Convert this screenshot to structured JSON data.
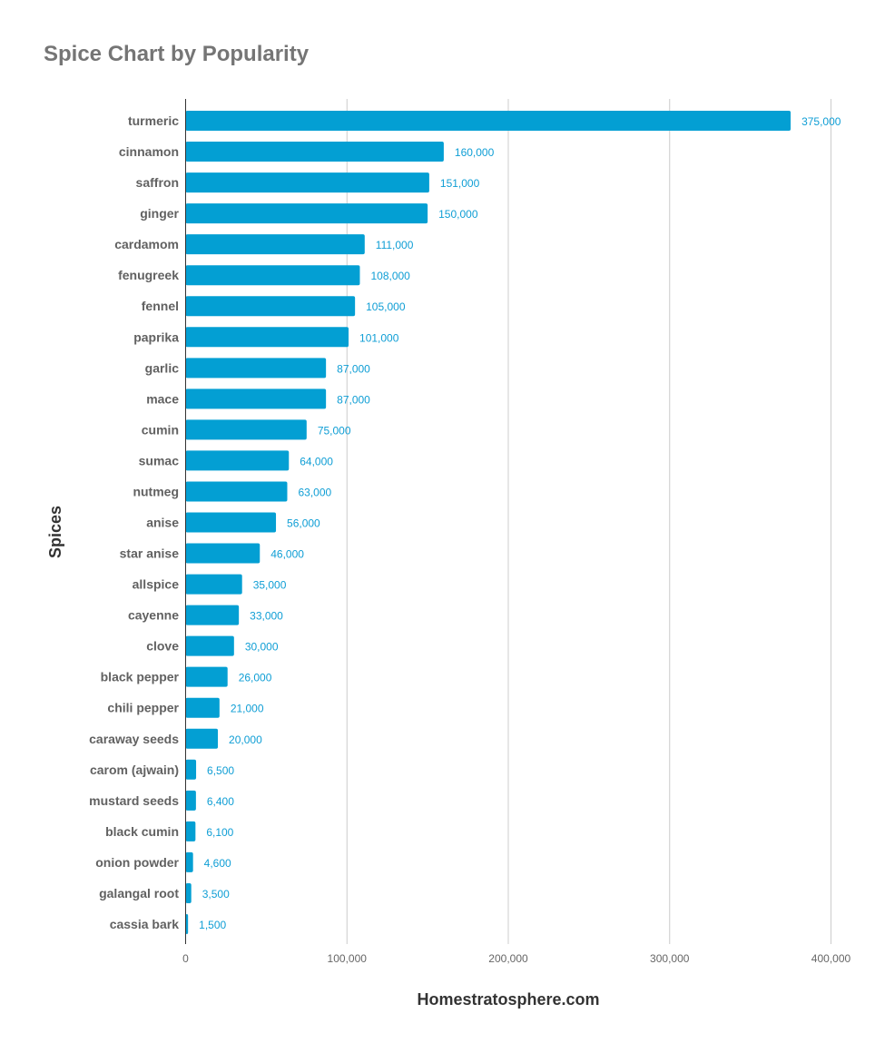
{
  "title": "Spice Chart by Popularity",
  "chart_data": {
    "type": "bar",
    "orientation": "horizontal",
    "title": "Spice Chart by Popularity",
    "xlabel": "Homestratosphere.com",
    "ylabel": "Spices",
    "xlim": [
      0,
      400000
    ],
    "xticks": [
      0,
      100000,
      200000,
      300000,
      400000
    ],
    "xtick_labels": [
      "0",
      "100,000",
      "200,000",
      "300,000",
      "400,000"
    ],
    "grid": "vertical",
    "bar_color": "#039fd3",
    "label_color": "#0f9ed5",
    "categories": [
      "turmeric",
      "cinnamon",
      "saffron",
      "ginger",
      "cardamom",
      "fenugreek",
      "fennel",
      "paprika",
      "garlic",
      "mace",
      "cumin",
      "sumac",
      "nutmeg",
      "anise",
      "star anise",
      "allspice",
      "cayenne",
      "clove",
      "black pepper",
      "chili pepper",
      "caraway seeds",
      "carom (ajwain)",
      "mustard seeds",
      "black cumin",
      "onion powder",
      "galangal root",
      "cassia bark"
    ],
    "values": [
      375000,
      160000,
      151000,
      150000,
      111000,
      108000,
      105000,
      101000,
      87000,
      87000,
      75000,
      64000,
      63000,
      56000,
      46000,
      35000,
      33000,
      30000,
      26000,
      21000,
      20000,
      6500,
      6400,
      6100,
      4600,
      3500,
      1500
    ],
    "value_labels": [
      "375,000",
      "160,000",
      "151,000",
      "150,000",
      "111,000",
      "108,000",
      "105,000",
      "101,000",
      "87,000",
      "87,000",
      "75,000",
      "64,000",
      "63,000",
      "56,000",
      "46,000",
      "35,000",
      "33,000",
      "30,000",
      "26,000",
      "21,000",
      "20,000",
      "6,500",
      "6,400",
      "6,100",
      "4,600",
      "3,500",
      "1,500"
    ]
  }
}
